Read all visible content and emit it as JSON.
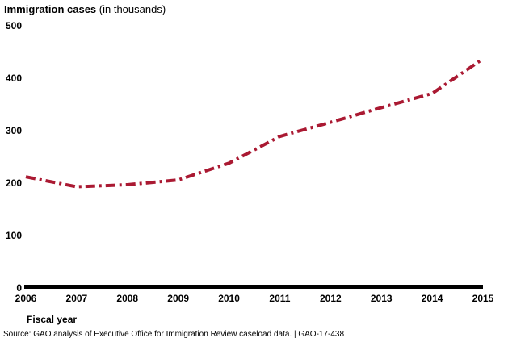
{
  "title": {
    "main": "Immigration cases",
    "sub": " (in thousands)"
  },
  "chart_data": {
    "type": "line",
    "x": [
      2006,
      2007,
      2008,
      2009,
      2010,
      2011,
      2012,
      2013,
      2014,
      2015
    ],
    "series": [
      {
        "name": "Immigration cases",
        "values": [
          212,
          193,
          197,
          206,
          238,
          289,
          316,
          344,
          371,
          437
        ]
      }
    ],
    "title": "Immigration cases (in thousands)",
    "xlabel": "Fiscal year",
    "ylabel": "Immigration cases (in thousands)",
    "ylim": [
      0,
      500
    ],
    "yticks": [
      0,
      100,
      200,
      300,
      400,
      500
    ],
    "grid": false,
    "legend": "none",
    "line_color": "#AA1932",
    "line_style": "dash-dot",
    "axis_color": "#000000"
  },
  "axis": {
    "x_label": "Fiscal year"
  },
  "source": "Source: GAO analysis of Executive Office for Immigration Review caseload data.  |  GAO-17-438"
}
